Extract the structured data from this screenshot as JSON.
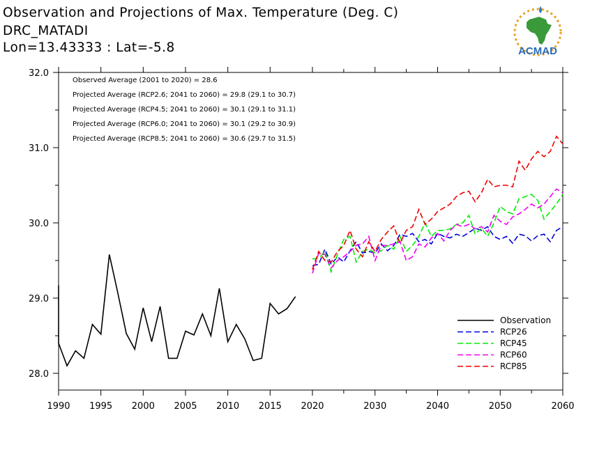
{
  "title": {
    "line1": "Observation and Projections of Max. Temperature (Deg. C)",
    "line2": "DRC_MATADI",
    "line3": "Lon=13.43333 : Lat=-5.8"
  },
  "logo": {
    "text": "ACMAD",
    "icon": "africa-map-logo"
  },
  "colors": {
    "Observation": "#000000",
    "RCP26": "#0000dd",
    "RCP45": "#00ee00",
    "RCP60": "#ee00ee",
    "RCP85": "#ee0000"
  },
  "chart_data": {
    "type": "line",
    "xlim": [
      1989,
      2060
    ],
    "ylim": [
      27.8,
      32.0
    ],
    "x_ticks": [
      "1990",
      "1995",
      "2000",
      "2005",
      "2010",
      "2015",
      "2020",
      "2030",
      "2040",
      "2050",
      "2060"
    ],
    "y_ticks": [
      "28.0",
      "29.0",
      "30.0",
      "31.0",
      "32.0"
    ],
    "annotations": [
      "Observed Average (2001 to 2020) = 28.6",
      "Projected Average (RCP2.6; 2041 to 2060) = 29.8 (29.1 to 30.7)",
      "Projected Average (RCP4.5; 2041 to 2060) = 30.1 (29.1 to 31.1)",
      "Projected Average (RCP6.0; 2041 to 2060) = 30.1 (29.2 to 30.9)",
      "Projected Average (RCP8.5; 2041 to 2060) = 30.6 (29.7 to 31.5)"
    ],
    "legend_position": "bottom-right",
    "series": [
      {
        "name": "Observation",
        "style": "solid",
        "x_start": 1989,
        "values": [
          29.17,
          28.4,
          28.1,
          28.3,
          28.2,
          28.65,
          28.52,
          29.58,
          29.07,
          28.53,
          28.32,
          28.87,
          28.42,
          28.89,
          28.2,
          28.2,
          28.56,
          28.51,
          28.79,
          28.5,
          29.13,
          28.42,
          28.65,
          28.46,
          28.17,
          28.2,
          28.93,
          28.79,
          28.86,
          29.02
        ]
      },
      {
        "name": "RCP26",
        "style": "dashed",
        "x_start": 2020,
        "values": [
          29.43,
          29.45,
          29.65,
          29.45,
          29.55,
          29.48,
          29.63,
          29.75,
          29.6,
          29.62,
          29.6,
          29.72,
          29.63,
          29.7,
          29.85,
          29.82,
          29.86,
          29.75,
          29.78,
          29.72,
          29.86,
          29.82,
          29.8,
          29.85,
          29.82,
          29.87,
          29.93,
          29.9,
          29.95,
          29.82,
          29.78,
          29.82,
          29.73,
          29.85,
          29.83,
          29.76,
          29.83,
          29.85,
          29.75,
          29.9,
          29.95
        ]
      },
      {
        "name": "RCP45",
        "style": "dashed",
        "x_start": 2020,
        "values": [
          29.52,
          29.53,
          29.62,
          29.35,
          29.58,
          29.78,
          29.82,
          29.48,
          29.62,
          29.65,
          29.6,
          29.63,
          29.7,
          29.65,
          29.82,
          29.62,
          29.7,
          29.82,
          30.0,
          29.82,
          29.9,
          29.9,
          29.92,
          29.98,
          30.0,
          30.1,
          29.85,
          29.93,
          29.82,
          30.0,
          30.22,
          30.15,
          30.12,
          30.32,
          30.35,
          30.38,
          30.3,
          30.05,
          30.15,
          30.25,
          30.38
        ]
      },
      {
        "name": "RCP60",
        "style": "dashed",
        "x_start": 2020,
        "values": [
          29.33,
          29.6,
          29.58,
          29.4,
          29.5,
          29.55,
          29.62,
          29.7,
          29.72,
          29.82,
          29.5,
          29.7,
          29.7,
          29.72,
          29.75,
          29.5,
          29.55,
          29.72,
          29.68,
          29.8,
          29.86,
          29.76,
          29.9,
          29.98,
          29.95,
          29.98,
          29.92,
          29.95,
          29.88,
          30.1,
          30.02,
          29.98,
          30.08,
          30.12,
          30.18,
          30.25,
          30.2,
          30.25,
          30.35,
          30.45,
          30.4
        ]
      },
      {
        "name": "RCP85",
        "style": "dashed",
        "x_start": 2020,
        "values": [
          29.38,
          29.62,
          29.5,
          29.48,
          29.62,
          29.7,
          29.9,
          29.65,
          29.55,
          29.75,
          29.62,
          29.78,
          29.88,
          29.96,
          29.73,
          29.9,
          29.95,
          30.18,
          29.98,
          30.05,
          30.15,
          30.2,
          30.25,
          30.35,
          30.4,
          30.42,
          30.28,
          30.4,
          30.58,
          30.48,
          30.5,
          30.5,
          30.48,
          30.82,
          30.7,
          30.85,
          30.95,
          30.88,
          30.95,
          31.15,
          31.05
        ]
      }
    ]
  }
}
